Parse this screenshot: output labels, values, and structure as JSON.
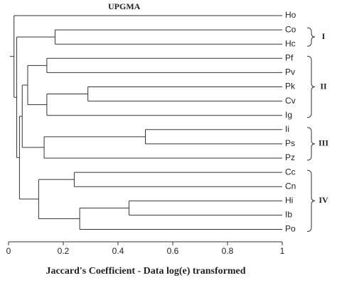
{
  "chart_data": {
    "type": "dendrogram",
    "title": "UPGMA",
    "x_label": "Jaccard's Coefficient - Data log(e) transformed",
    "xlim": [
      0,
      1
    ],
    "xticks": [
      0,
      0.2,
      0.4,
      0.6,
      0.8,
      1
    ],
    "tree": {
      "height": 0.02,
      "children": [
        {
          "label": "Ho"
        },
        {
          "height": 0.03,
          "children": [
            {
              "height": 0.17,
              "group": "I",
              "children": [
                {
                  "label": "Co"
                },
                {
                  "label": "Hc"
                }
              ]
            },
            {
              "height": 0.04,
              "children": [
                {
                  "height": 0.05,
                  "children": [
                    {
                      "height": 0.07,
                      "group": "II",
                      "children": [
                        {
                          "height": 0.14,
                          "children": [
                            {
                              "label": "Pf"
                            },
                            {
                              "label": "Pv"
                            }
                          ]
                        },
                        {
                          "height": 0.14,
                          "children": [
                            {
                              "height": 0.29,
                              "children": [
                                {
                                  "label": "Pk"
                                },
                                {
                                  "label": "Cv"
                                }
                              ]
                            },
                            {
                              "label": "Ig"
                            }
                          ]
                        }
                      ]
                    },
                    {
                      "height": 0.13,
                      "group": "III",
                      "children": [
                        {
                          "height": 0.5,
                          "children": [
                            {
                              "label": "Ii"
                            },
                            {
                              "label": "Ps"
                            }
                          ]
                        },
                        {
                          "label": "Pz"
                        }
                      ]
                    }
                  ]
                },
                {
                  "height": 0.11,
                  "group": "IV",
                  "children": [
                    {
                      "height": 0.24,
                      "children": [
                        {
                          "label": "Cc"
                        },
                        {
                          "label": "Cn"
                        }
                      ]
                    },
                    {
                      "height": 0.26,
                      "children": [
                        {
                          "height": 0.44,
                          "children": [
                            {
                              "label": "Hi"
                            },
                            {
                              "label": "Ib"
                            }
                          ]
                        },
                        {
                          "label": "Po"
                        }
                      ]
                    }
                  ]
                }
              ]
            }
          ]
        }
      ]
    }
  }
}
